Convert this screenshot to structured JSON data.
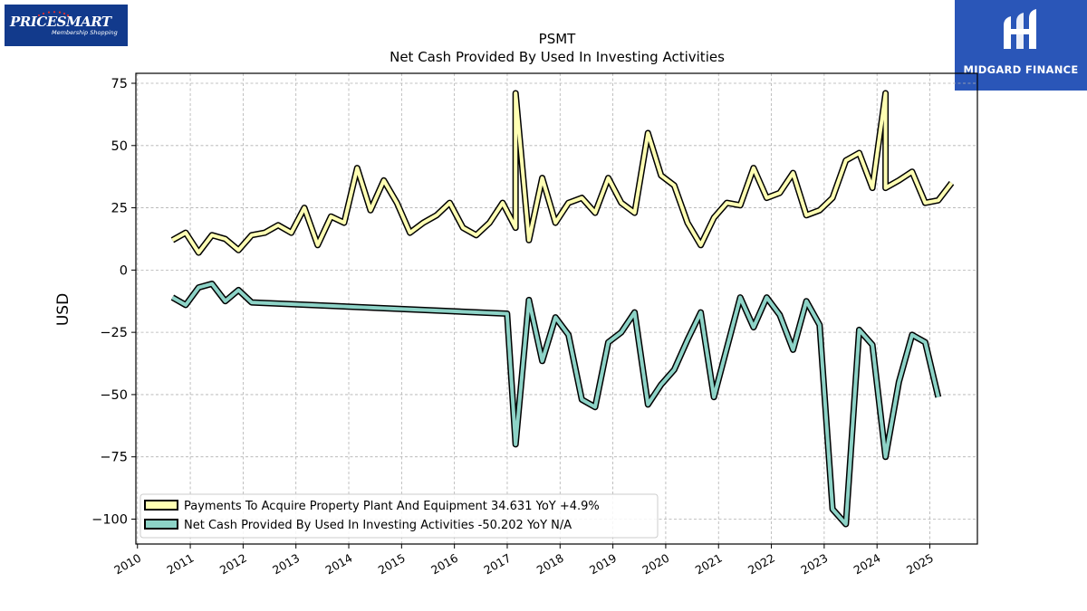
{
  "logos": {
    "left_brand": "PRICESMART",
    "left_tagline": "Membership Shopping",
    "right_name": "MIDGARD FINANCE"
  },
  "chart_data": {
    "type": "line",
    "title": "PSMT",
    "subtitle": "Net Cash Provided By Used In Investing Activities",
    "ylabel": "USD",
    "xlabel": "",
    "ylim": [
      -110,
      79
    ],
    "xlim": [
      2009.97,
      2025.9
    ],
    "yticks": [
      75,
      50,
      25,
      0,
      -25,
      -50,
      -75,
      -100
    ],
    "ytick_labels": [
      "75",
      "50",
      "25",
      "0",
      "−25",
      "−50",
      "−75",
      "−100"
    ],
    "xticks": [
      "2010",
      "2011",
      "2012",
      "2013",
      "2014",
      "2015",
      "2016",
      "2017",
      "2018",
      "2019",
      "2020",
      "2021",
      "2022",
      "2023",
      "2024",
      "2025"
    ],
    "grid": true,
    "legend_position": "lower-left",
    "series": [
      {
        "name": "Payments To Acquire Property Plant And Equipment",
        "legend_label": "Payments To Acquire Property Plant And Equipment  34.631 YoY +4.9%",
        "color": "#ffffb3",
        "points": [
          [
            "2010-08-31",
            12
          ],
          [
            "2010-11-30",
            15
          ],
          [
            "2011-02-28",
            7
          ],
          [
            "2011-05-31",
            14
          ],
          [
            "2011-08-31",
            12.5
          ],
          [
            "2011-11-30",
            8
          ],
          [
            "2012-02-29",
            14
          ],
          [
            "2012-05-31",
            15
          ],
          [
            "2012-08-31",
            18
          ],
          [
            "2012-11-30",
            15
          ],
          [
            "2013-02-28",
            25
          ],
          [
            "2013-05-31",
            10
          ],
          [
            "2013-08-31",
            21.5
          ],
          [
            "2013-11-30",
            19
          ],
          [
            "2014-02-28",
            41
          ],
          [
            "2014-05-31",
            24
          ],
          [
            "2014-08-31",
            36
          ],
          [
            "2014-11-30",
            27
          ],
          [
            "2015-02-28",
            15
          ],
          [
            "2015-05-31",
            19
          ],
          [
            "2015-08-31",
            22
          ],
          [
            "2015-11-30",
            27
          ],
          [
            "2016-02-29",
            17
          ],
          [
            "2016-05-31",
            14
          ],
          [
            "2016-08-31",
            19
          ],
          [
            "2016-11-30",
            27
          ],
          [
            "2017-02-28",
            17
          ],
          [
            "2017-02-28",
            71
          ],
          [
            "2017-05-31",
            12
          ],
          [
            "2017-08-31",
            37
          ],
          [
            "2017-11-30",
            19
          ],
          [
            "2018-02-28",
            27
          ],
          [
            "2018-05-31",
            29
          ],
          [
            "2018-08-31",
            23
          ],
          [
            "2018-11-30",
            37
          ],
          [
            "2019-02-28",
            27
          ],
          [
            "2019-05-31",
            23
          ],
          [
            "2019-08-31",
            55
          ],
          [
            "2019-11-30",
            38
          ],
          [
            "2020-02-29",
            34
          ],
          [
            "2020-05-31",
            19
          ],
          [
            "2020-08-31",
            10
          ],
          [
            "2020-11-30",
            21
          ],
          [
            "2021-02-28",
            27
          ],
          [
            "2021-05-31",
            26
          ],
          [
            "2021-08-31",
            41
          ],
          [
            "2021-11-30",
            29
          ],
          [
            "2022-02-28",
            31
          ],
          [
            "2022-05-31",
            39
          ],
          [
            "2022-08-31",
            22
          ],
          [
            "2022-11-30",
            24
          ],
          [
            "2023-02-28",
            29
          ],
          [
            "2023-05-31",
            44
          ],
          [
            "2023-08-31",
            47
          ],
          [
            "2023-11-30",
            33
          ],
          [
            "2024-02-29",
            71
          ],
          [
            "2024-02-29",
            33
          ],
          [
            "2024-05-31",
            36
          ],
          [
            "2024-08-31",
            39.5
          ],
          [
            "2024-11-30",
            27
          ],
          [
            "2025-02-28",
            28
          ],
          [
            "2025-05-31",
            35
          ]
        ]
      },
      {
        "name": "Net Cash Provided By Used In Investing Activities",
        "legend_label": "Net Cash Provided By Used In Investing Activities  -50.202 YoY N/A",
        "color": "#8dd3c7",
        "points": [
          [
            "2010-08-31",
            -11
          ],
          [
            "2010-11-30",
            -14
          ],
          [
            "2011-02-28",
            -7
          ],
          [
            "2011-05-31",
            -5.5
          ],
          [
            "2011-08-31",
            -12.5
          ],
          [
            "2011-11-30",
            -8
          ],
          [
            "2012-02-29",
            -13
          ],
          [
            "2016-12-31",
            -17.5
          ],
          [
            "2017-02-28",
            -70
          ],
          [
            "2017-05-31",
            -12
          ],
          [
            "2017-08-31",
            -36.5
          ],
          [
            "2017-11-30",
            -19
          ],
          [
            "2018-02-28",
            -26
          ],
          [
            "2018-05-31",
            -52
          ],
          [
            "2018-08-31",
            -55
          ],
          [
            "2018-11-30",
            -29
          ],
          [
            "2019-02-28",
            -25
          ],
          [
            "2019-05-31",
            -17
          ],
          [
            "2019-08-31",
            -54
          ],
          [
            "2019-11-30",
            -46
          ],
          [
            "2020-02-29",
            -40
          ],
          [
            "2020-05-31",
            -28
          ],
          [
            "2020-08-31",
            -17
          ],
          [
            "2020-11-30",
            -51
          ],
          [
            "2021-05-31",
            -11
          ],
          [
            "2021-08-31",
            -23
          ],
          [
            "2021-11-30",
            -11
          ],
          [
            "2022-02-28",
            -18
          ],
          [
            "2022-05-31",
            -32
          ],
          [
            "2022-08-31",
            -12.5
          ],
          [
            "2022-11-30",
            -22
          ],
          [
            "2023-02-28",
            -96
          ],
          [
            "2023-05-31",
            -102
          ],
          [
            "2023-08-31",
            -24
          ],
          [
            "2023-11-30",
            -30
          ],
          [
            "2024-02-29",
            -75
          ],
          [
            "2024-05-31",
            -45
          ],
          [
            "2024-08-31",
            -26
          ],
          [
            "2024-11-30",
            -29
          ],
          [
            "2025-02-28",
            -51
          ]
        ]
      }
    ]
  }
}
